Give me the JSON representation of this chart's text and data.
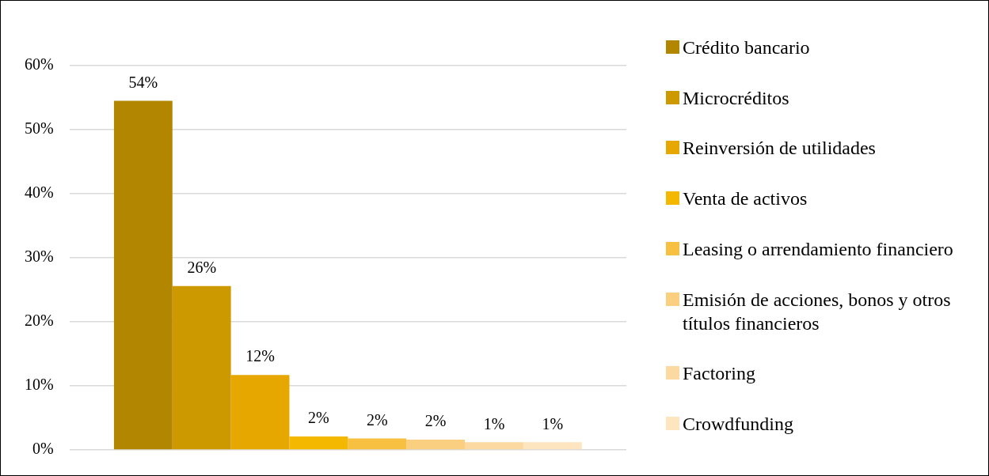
{
  "chart_data": {
    "type": "bar",
    "categories": [
      null
    ],
    "series": [
      {
        "name": "Crédito bancario",
        "color": "#b38600",
        "values": [
          54.5
        ],
        "value_labels": [
          "54%"
        ]
      },
      {
        "name": "Microcréditos",
        "color": "#cc9900",
        "values": [
          25.6
        ],
        "value_labels": [
          "26%"
        ]
      },
      {
        "name": "Reinversión de utilidades",
        "color": "#e6a800",
        "values": [
          11.7
        ],
        "value_labels": [
          "12%"
        ]
      },
      {
        "name": "Venta de activos",
        "color": "#f5b800",
        "values": [
          2.1
        ],
        "value_labels": [
          "2%"
        ]
      },
      {
        "name": "Leasing o arrendamiento financiero",
        "color": "#f8c040",
        "values": [
          1.8
        ],
        "value_labels": [
          "2%"
        ]
      },
      {
        "name": "Emisión de acciones, bonos y otros títulos financieros",
        "color": "#fbcf80",
        "values": [
          1.6
        ],
        "value_labels": [
          "2%"
        ]
      },
      {
        "name": "Factoring",
        "color": "#fcd9a0",
        "values": [
          1.2
        ],
        "value_labels": [
          "1%"
        ]
      },
      {
        "name": "Crowdfunding",
        "color": "#fde5c0",
        "values": [
          1.2
        ],
        "value_labels": [
          "1%"
        ]
      }
    ],
    "ylim": [
      0,
      60
    ],
    "yticks": [
      {
        "value": 0,
        "label": "0%"
      },
      {
        "value": 10,
        "label": "10%"
      },
      {
        "value": 20,
        "label": "20%"
      },
      {
        "value": 30,
        "label": "30%"
      },
      {
        "value": 40,
        "label": "40%"
      },
      {
        "value": 50,
        "label": "50%"
      },
      {
        "value": 60,
        "label": "60%"
      }
    ],
    "grid": "y",
    "legend": "right"
  }
}
